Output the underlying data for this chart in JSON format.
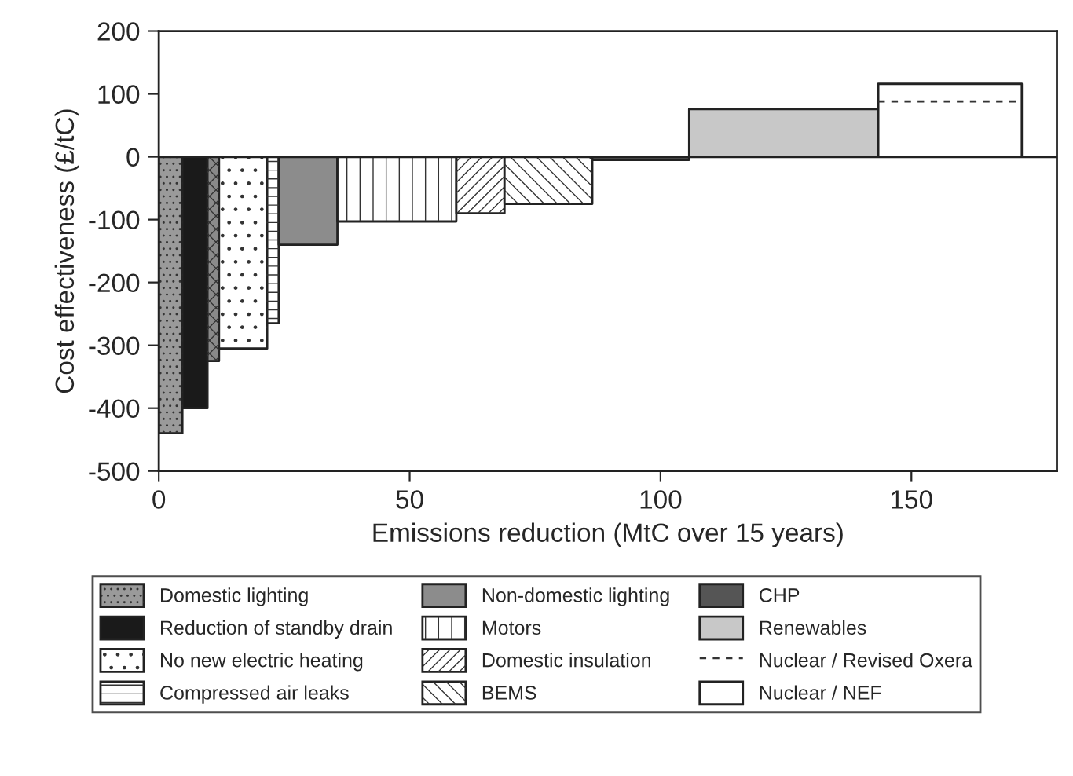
{
  "chart_data": {
    "type": "area",
    "xlabel": "Emissions reduction (MtC over 15 years)",
    "ylabel": "Cost effectiveness (£/tC)",
    "xlim": [
      0,
      179
    ],
    "xticks": [
      0,
      50,
      100,
      150
    ],
    "ylim": [
      -500,
      200
    ],
    "yticks": [
      -500,
      -400,
      -300,
      -200,
      -100,
      0,
      100,
      200
    ],
    "grid": false,
    "legend": "bottom",
    "series": [
      {
        "name": "Domestic lighting",
        "color": "#9a9a9a",
        "x": [
          0,
          4.7
        ],
        "values": [
          -440,
          -440
        ]
      },
      {
        "name": "Reduction of standby drain",
        "color": "#1a1a1a",
        "x": [
          4.7,
          9.7
        ],
        "values": [
          -400,
          -400
        ]
      },
      {
        "color": "#8a8a8a",
        "x": [
          9.7,
          12.0
        ],
        "values": [
          -325,
          -325
        ]
      },
      {
        "name": "No new electric heating",
        "color": "#ffffff",
        "x": [
          12.0,
          21.6
        ],
        "values": [
          -305,
          -305
        ]
      },
      {
        "name": "Compressed air leaks",
        "color": "#ffffff",
        "x": [
          21.6,
          23.9
        ],
        "values": [
          -265,
          -265
        ]
      },
      {
        "name": "Non-domestic lighting",
        "color": "#8c8c8c",
        "x": [
          23.9,
          35.6
        ],
        "values": [
          -140,
          -140
        ]
      },
      {
        "name": "Motors",
        "color": "#ffffff",
        "x": [
          35.6,
          59.3
        ],
        "values": [
          -103,
          -103
        ]
      },
      {
        "name": "Domestic insulation",
        "color": "#ffffff",
        "x": [
          59.3,
          68.9
        ],
        "values": [
          -90,
          -90
        ]
      },
      {
        "name": "BEMS",
        "color": "#ffffff",
        "x": [
          68.9,
          86.4
        ],
        "values": [
          -75,
          -75
        ]
      },
      {
        "name": "CHP",
        "color": "#555555",
        "x": [
          86.4,
          105.7
        ],
        "values": [
          -5,
          -5
        ]
      },
      {
        "name": "Renewables",
        "color": "#c8c8c8",
        "x": [
          105.7,
          143.4
        ],
        "values": [
          76,
          76
        ]
      },
      {
        "name": "Nuclear / Revised Oxera",
        "type": "line",
        "line_style": "dashed",
        "color": "#333333",
        "x": [
          143.4,
          172
        ],
        "values": [
          88,
          88
        ]
      },
      {
        "name": "Nuclear / NEF",
        "color": "#ffffff",
        "x": [
          143.4,
          172
        ],
        "values": [
          116,
          116
        ]
      }
    ]
  }
}
